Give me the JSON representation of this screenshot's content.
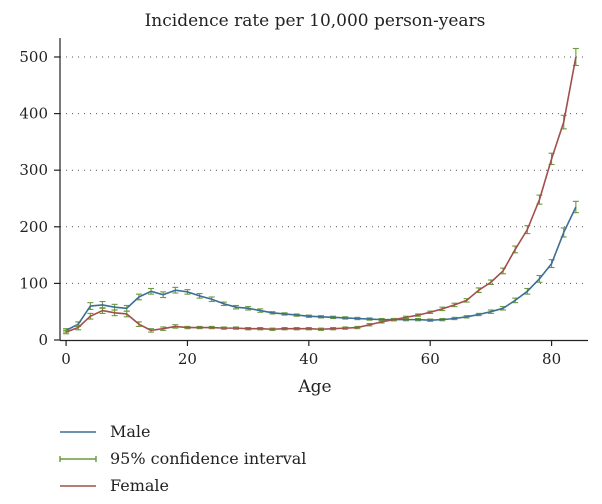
{
  "chart_data": {
    "type": "line",
    "title": "Incidence rate per 10,000 person-years",
    "xlabel": "Age",
    "ylabel": "",
    "xlim": [
      -1,
      86
    ],
    "ylim": [
      0,
      530
    ],
    "xticks": [
      0,
      20,
      40,
      60,
      80
    ],
    "yticks": [
      0,
      100,
      200,
      300,
      400,
      500
    ],
    "grid": "horizontal dotted",
    "legend": "bottom-left",
    "colors": {
      "male": "#3c6e96",
      "female": "#a0504a",
      "ci": "#6a9a3a"
    },
    "legend_entries": [
      "Male",
      "95% confidence interval",
      "Female"
    ],
    "series": [
      {
        "name": "Male",
        "x": [
          0,
          2,
          4,
          6,
          8,
          10,
          12,
          14,
          16,
          18,
          20,
          22,
          24,
          26,
          28,
          30,
          32,
          34,
          36,
          38,
          40,
          42,
          44,
          46,
          48,
          50,
          52,
          54,
          56,
          58,
          60,
          62,
          64,
          66,
          68,
          70,
          72,
          74,
          76,
          78,
          80,
          82,
          84
        ],
        "values": [
          17,
          28,
          60,
          62,
          58,
          56,
          76,
          86,
          80,
          88,
          85,
          78,
          72,
          64,
          58,
          56,
          52,
          48,
          46,
          44,
          42,
          41,
          40,
          39,
          38,
          37,
          36,
          36,
          36,
          36,
          35,
          36,
          38,
          41,
          45,
          50,
          56,
          70,
          86,
          108,
          135,
          190,
          235
        ],
        "ci_halfwidth": [
          3,
          4,
          6,
          6,
          5,
          5,
          5,
          5,
          5,
          5,
          4,
          4,
          4,
          3,
          3,
          3,
          3,
          2,
          2,
          2,
          2,
          2,
          2,
          2,
          2,
          2,
          2,
          2,
          2,
          2,
          2,
          2,
          2,
          2,
          2,
          3,
          3,
          4,
          5,
          6,
          7,
          8,
          10
        ]
      },
      {
        "name": "Female",
        "x": [
          0,
          2,
          4,
          6,
          8,
          10,
          12,
          14,
          16,
          18,
          20,
          22,
          24,
          26,
          28,
          30,
          32,
          34,
          36,
          38,
          40,
          42,
          44,
          46,
          48,
          50,
          52,
          54,
          56,
          58,
          60,
          62,
          64,
          66,
          68,
          70,
          72,
          74,
          76,
          78,
          80,
          82,
          84
        ],
        "values": [
          14,
          22,
          42,
          52,
          48,
          46,
          28,
          17,
          20,
          24,
          22,
          22,
          22,
          21,
          21,
          20,
          20,
          19,
          20,
          20,
          20,
          19,
          20,
          21,
          22,
          27,
          32,
          36,
          40,
          44,
          49,
          55,
          62,
          70,
          88,
          102,
          122,
          160,
          195,
          248,
          320,
          385,
          500
        ],
        "ci_halfwidth": [
          3,
          4,
          5,
          5,
          5,
          5,
          4,
          3,
          3,
          3,
          2,
          2,
          2,
          2,
          2,
          2,
          2,
          2,
          2,
          2,
          2,
          2,
          2,
          2,
          2,
          2,
          2,
          2,
          2,
          2,
          2,
          3,
          3,
          3,
          4,
          4,
          5,
          6,
          7,
          8,
          10,
          12,
          15
        ]
      }
    ]
  }
}
